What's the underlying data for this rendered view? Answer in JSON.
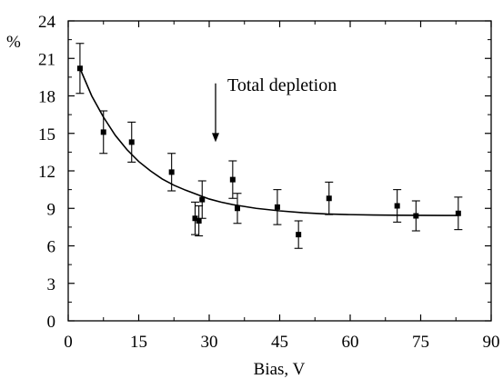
{
  "chart_data": {
    "type": "scatter",
    "xlabel": "Bias, V",
    "ylabel": "%",
    "xlim": [
      0,
      90
    ],
    "ylim": [
      0,
      24
    ],
    "x_major_ticks": [
      0,
      15,
      30,
      45,
      60,
      75,
      90
    ],
    "y_major_ticks": [
      0,
      3,
      6,
      9,
      12,
      15,
      18,
      21,
      24
    ],
    "x_tick_labels": [
      "0",
      "15",
      "30",
      "45",
      "60",
      "75",
      "90"
    ],
    "y_tick_labels": [
      "0",
      "3",
      "6",
      "9",
      "12",
      "15",
      "18",
      "21",
      "24"
    ],
    "grid": false,
    "annotation": {
      "text": "Total depletion",
      "arrow_x": 30,
      "arrow_from_y": 19.0,
      "arrow_to_y": 14.3
    },
    "series": [
      {
        "kind": "points_with_error_bars",
        "x": [
          2.5,
          7.5,
          13.5,
          22.0,
          27.0,
          27.8,
          28.5,
          35.0,
          36.0,
          44.5,
          49.0,
          55.5,
          70.0,
          74.0,
          83.0
        ],
        "y": [
          20.2,
          15.1,
          14.3,
          11.9,
          8.2,
          8.0,
          9.7,
          11.3,
          9.0,
          9.1,
          6.9,
          9.8,
          9.2,
          8.4,
          8.6
        ],
        "err": [
          2.0,
          1.7,
          1.6,
          1.5,
          1.3,
          1.2,
          1.5,
          1.5,
          1.2,
          1.4,
          1.1,
          1.3,
          1.3,
          1.2,
          1.3
        ]
      },
      {
        "kind": "fit_curve",
        "x": [
          2.5,
          5,
          7.5,
          10,
          12.5,
          15,
          17.5,
          20,
          22.5,
          25,
          27.5,
          30,
          32.5,
          35,
          40,
          45,
          50,
          55,
          60,
          65,
          70,
          75,
          80,
          83
        ],
        "y": [
          20.2,
          18.0,
          16.3,
          14.85,
          13.7,
          12.75,
          12.0,
          11.35,
          10.85,
          10.45,
          10.1,
          9.75,
          9.5,
          9.3,
          9.0,
          8.8,
          8.65,
          8.55,
          8.5,
          8.47,
          8.45,
          8.44,
          8.43,
          8.43
        ]
      }
    ]
  }
}
